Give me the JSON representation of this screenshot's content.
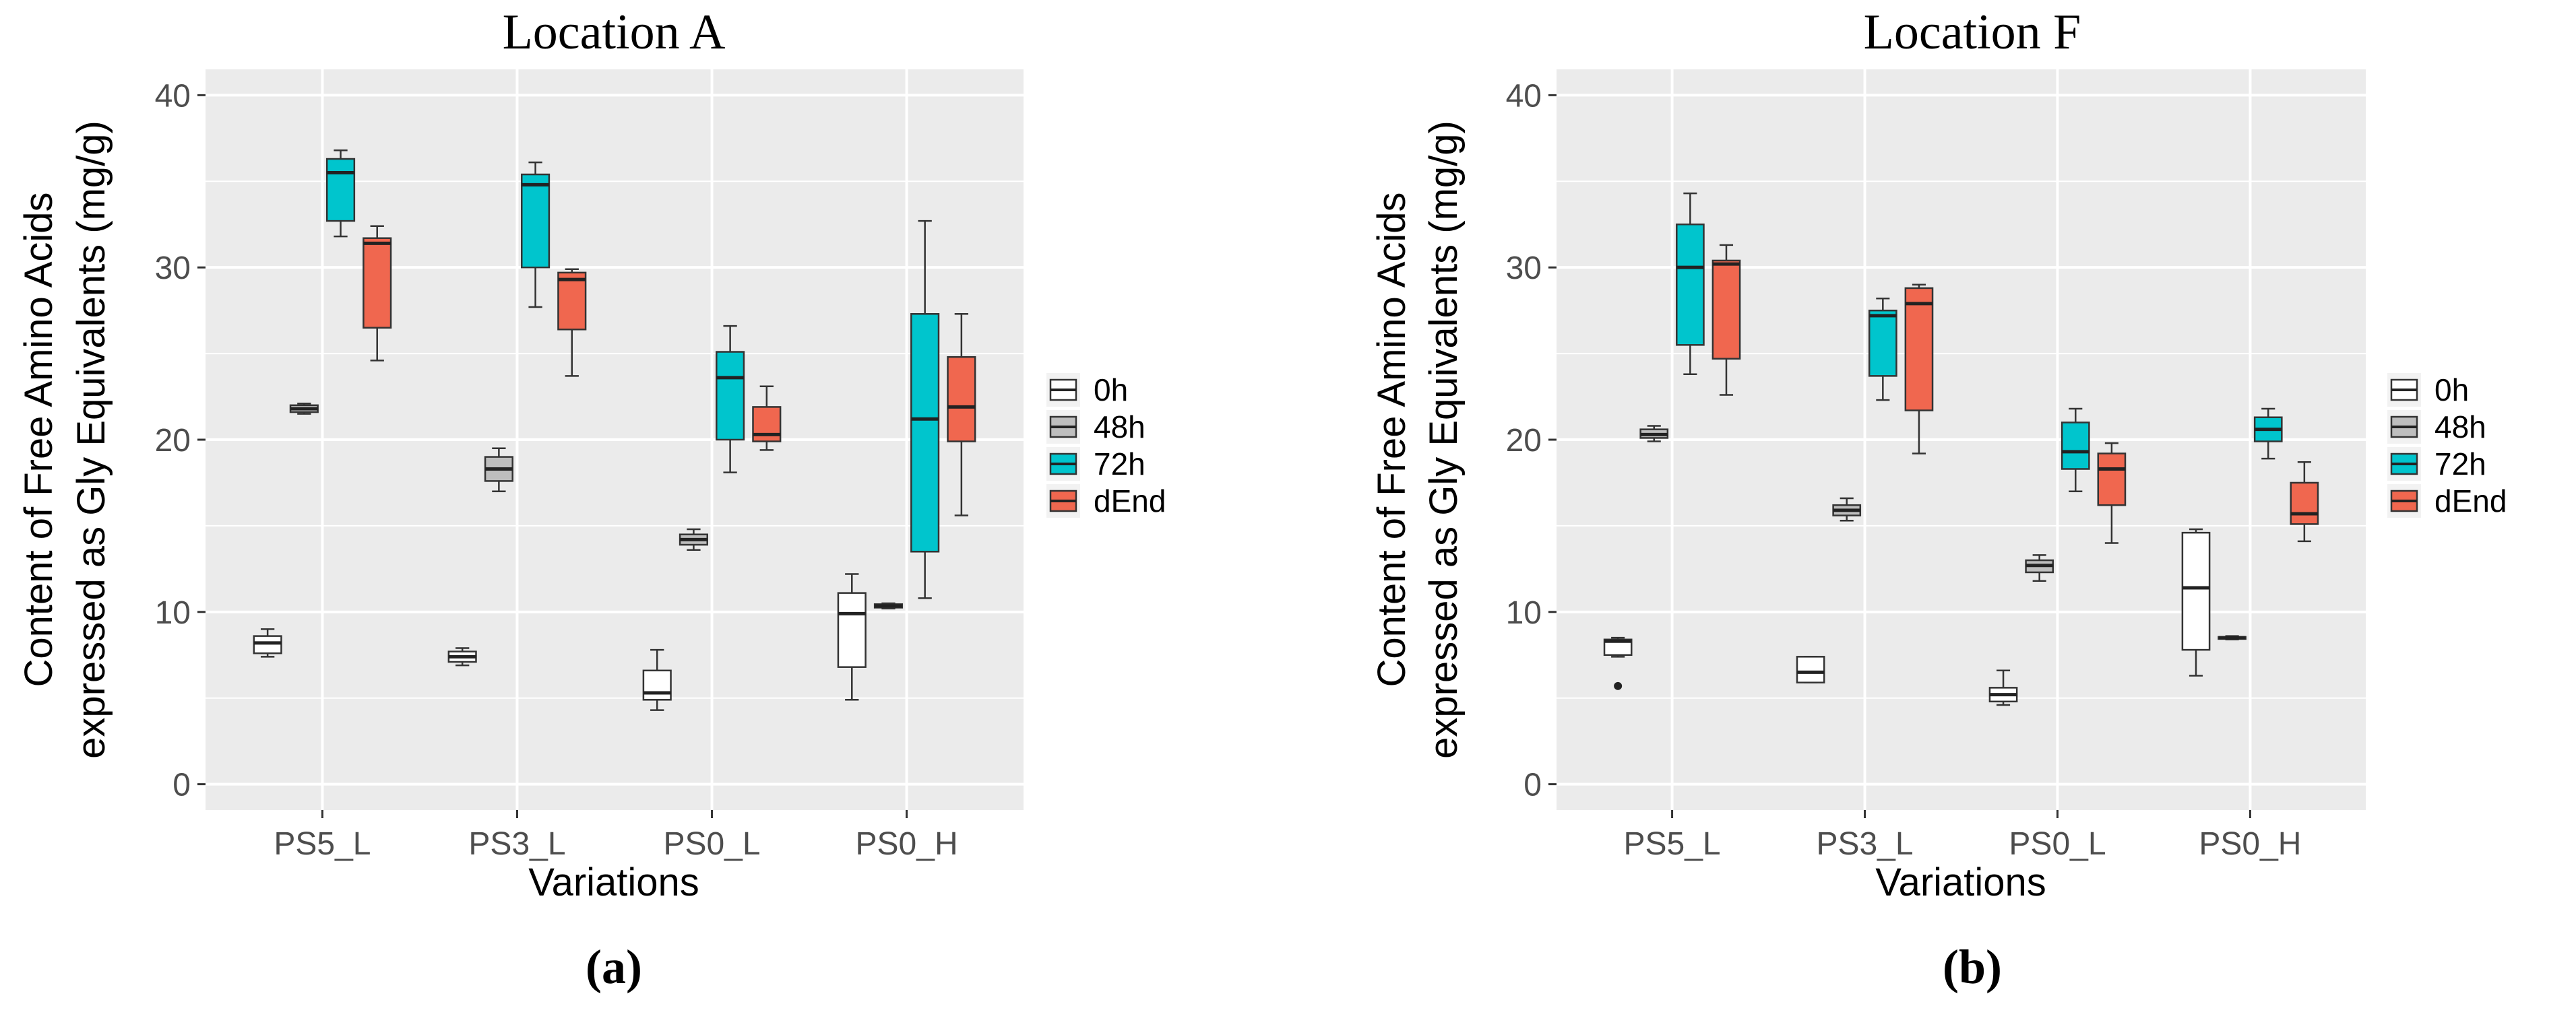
{
  "chart_data": [
    {
      "type": "boxplot",
      "panel_label": "(a)",
      "title": "Location A",
      "xlabel": "Variations",
      "ylabel_line1": "Content of Free Amino Acids",
      "ylabel_line2": "expressed as Gly Equivalents (mg/g)",
      "ylim": [
        -1.5,
        41.5
      ],
      "yticks": [
        0,
        10,
        20,
        30,
        40
      ],
      "ytick_labels": [
        "0",
        "10",
        "20",
        "30",
        "40"
      ],
      "categories": [
        "PS5_L",
        "PS3_L",
        "PS0_L",
        "PS0_H"
      ],
      "legend": {
        "position": "right",
        "entries": [
          "0h",
          "48h",
          "72h",
          "dEnd"
        ]
      },
      "series": [
        {
          "name": "0h",
          "boxes": [
            {
              "min": 7.4,
              "q1": 7.6,
              "median": 8.2,
              "q3": 8.6,
              "max": 9.0
            },
            {
              "min": 6.9,
              "q1": 7.1,
              "median": 7.4,
              "q3": 7.7,
              "max": 7.9
            },
            {
              "min": 4.3,
              "q1": 4.9,
              "median": 5.3,
              "q3": 6.6,
              "max": 7.8
            },
            {
              "min": 4.9,
              "q1": 6.8,
              "median": 9.9,
              "q3": 11.1,
              "max": 12.2
            }
          ]
        },
        {
          "name": "48h",
          "boxes": [
            {
              "min": 21.5,
              "q1": 21.6,
              "median": 21.8,
              "q3": 22.0,
              "max": 22.1
            },
            {
              "min": 17.0,
              "q1": 17.6,
              "median": 18.3,
              "q3": 19.0,
              "max": 19.5
            },
            {
              "min": 13.6,
              "q1": 13.9,
              "median": 14.2,
              "q3": 14.5,
              "max": 14.8
            },
            {
              "min": 10.2,
              "q1": 10.25,
              "median": 10.35,
              "q3": 10.45,
              "max": 10.5
            }
          ]
        },
        {
          "name": "72h",
          "boxes": [
            {
              "min": 31.8,
              "q1": 32.7,
              "median": 35.5,
              "q3": 36.3,
              "max": 36.8
            },
            {
              "min": 27.7,
              "q1": 30.0,
              "median": 34.8,
              "q3": 35.4,
              "max": 36.1
            },
            {
              "min": 18.1,
              "q1": 20.0,
              "median": 23.6,
              "q3": 25.1,
              "max": 26.6
            },
            {
              "min": 10.8,
              "q1": 13.5,
              "median": 21.2,
              "q3": 27.3,
              "max": 32.7
            }
          ]
        },
        {
          "name": "dEnd",
          "boxes": [
            {
              "min": 24.6,
              "q1": 26.5,
              "median": 31.4,
              "q3": 31.7,
              "max": 32.4
            },
            {
              "min": 23.7,
              "q1": 26.4,
              "median": 29.3,
              "q3": 29.7,
              "max": 29.9
            },
            {
              "min": 19.4,
              "q1": 19.9,
              "median": 20.3,
              "q3": 21.9,
              "max": 23.1
            },
            {
              "min": 15.6,
              "q1": 19.9,
              "median": 21.9,
              "q3": 24.8,
              "max": 27.3
            }
          ]
        }
      ]
    },
    {
      "type": "boxplot",
      "panel_label": "(b)",
      "title": "Location F",
      "xlabel": "Variations",
      "ylabel_line1": "Content of Free Amino Acids",
      "ylabel_line2": "expressed as Gly Equivalents (mg/g)",
      "ylim": [
        -1.5,
        41.5
      ],
      "yticks": [
        0,
        10,
        20,
        30,
        40
      ],
      "ytick_labels": [
        "0",
        "10",
        "20",
        "30",
        "40"
      ],
      "categories": [
        "PS5_L",
        "PS3_L",
        "PS0_L",
        "PS0_H"
      ],
      "legend": {
        "position": "right",
        "entries": [
          "0h",
          "48h",
          "72h",
          "dEnd"
        ]
      },
      "series": [
        {
          "name": "0h",
          "boxes": [
            {
              "min": 7.4,
              "q1": 7.5,
              "median": 8.3,
              "q3": 8.4,
              "max": 8.5,
              "outliers": [
                5.7
              ]
            },
            {
              "min": 5.9,
              "q1": 5.9,
              "median": 6.5,
              "q3": 7.4,
              "max": 7.4
            },
            {
              "min": 4.6,
              "q1": 4.8,
              "median": 5.2,
              "q3": 5.6,
              "max": 6.6
            },
            {
              "min": 6.3,
              "q1": 7.8,
              "median": 11.4,
              "q3": 14.6,
              "max": 14.8
            }
          ]
        },
        {
          "name": "48h",
          "boxes": [
            {
              "min": 19.9,
              "q1": 20.1,
              "median": 20.3,
              "q3": 20.6,
              "max": 20.8
            },
            {
              "min": 15.3,
              "q1": 15.6,
              "median": 15.9,
              "q3": 16.2,
              "max": 16.6
            },
            {
              "min": 11.8,
              "q1": 12.3,
              "median": 12.7,
              "q3": 13.0,
              "max": 13.3
            },
            {
              "min": 8.4,
              "q1": 8.45,
              "median": 8.5,
              "q3": 8.55,
              "max": 8.6
            }
          ]
        },
        {
          "name": "72h",
          "boxes": [
            {
              "min": 23.8,
              "q1": 25.5,
              "median": 30.0,
              "q3": 32.5,
              "max": 34.3
            },
            {
              "min": 22.3,
              "q1": 23.7,
              "median": 27.2,
              "q3": 27.5,
              "max": 28.2
            },
            {
              "min": 17.0,
              "q1": 18.3,
              "median": 19.3,
              "q3": 21.0,
              "max": 21.8
            },
            {
              "min": 18.9,
              "q1": 19.9,
              "median": 20.6,
              "q3": 21.3,
              "max": 21.8
            }
          ]
        },
        {
          "name": "dEnd",
          "boxes": [
            {
              "min": 22.6,
              "q1": 24.7,
              "median": 30.2,
              "q3": 30.4,
              "max": 31.3
            },
            {
              "min": 19.2,
              "q1": 21.7,
              "median": 27.9,
              "q3": 28.8,
              "max": 29.0
            },
            {
              "min": 14.0,
              "q1": 16.2,
              "median": 18.3,
              "q3": 19.2,
              "max": 19.8
            },
            {
              "min": 14.1,
              "q1": 15.1,
              "median": 15.7,
              "q3": 17.5,
              "max": 18.7
            }
          ]
        }
      ]
    }
  ],
  "colors": {
    "panel_bg": "#ebebeb",
    "grid": "#ffffff",
    "axis_text": "#4d4d4d",
    "text": "#000000",
    "series": {
      "0h": "#ffffff",
      "48h": "#bebebe",
      "72h": "#00c5cd",
      "dEnd": "#f0674f"
    }
  }
}
